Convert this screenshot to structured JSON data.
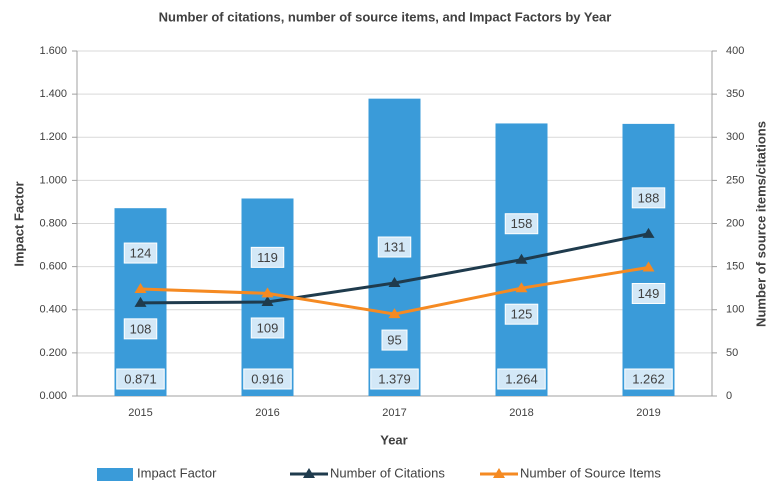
{
  "chart_data": {
    "type": "bar",
    "title": "Number of citations, number of source items, and Impact Factors by Year",
    "x_label": "Year",
    "y_label": "Impact Factor",
    "y2_label": "Number of source items/citations",
    "categories": [
      "2015",
      "2016",
      "2017",
      "2018",
      "2019"
    ],
    "series": [
      {
        "name": "Impact Factor",
        "type": "bar",
        "color": "#3a9bd9",
        "values": [
          0.871,
          0.916,
          1.379,
          1.264,
          1.262
        ]
      },
      {
        "name": "Number of Citations",
        "type": "line",
        "axis": "y2",
        "color": "#1f3b4d",
        "values": [
          108,
          109,
          131,
          158,
          188
        ]
      },
      {
        "name": "Number of Source Items",
        "type": "line",
        "axis": "y2",
        "color": "#f58a22",
        "values": [
          124,
          119,
          95,
          125,
          149
        ]
      }
    ],
    "ylim": [
      0,
      1.6
    ],
    "yticks": [
      {
        "value": 0,
        "label": "0.000"
      },
      {
        "value": 0.2,
        "label": "0.200"
      },
      {
        "value": 0.4,
        "label": "0.400"
      },
      {
        "value": 0.6,
        "label": "0.600"
      },
      {
        "value": 0.8,
        "label": "0.800"
      },
      {
        "value": 1.0,
        "label": "1.000"
      },
      {
        "value": 1.2,
        "label": "1.200"
      },
      {
        "value": 1.4,
        "label": "1.400"
      },
      {
        "value": 1.6,
        "label": "1.600"
      }
    ],
    "y2lim": [
      0,
      400
    ],
    "y2ticks": [
      0,
      50,
      100,
      150,
      200,
      250,
      300,
      350,
      400
    ],
    "grid": true,
    "legend": "bottom"
  }
}
